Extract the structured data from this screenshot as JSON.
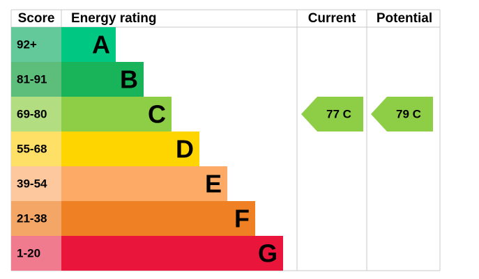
{
  "header": {
    "score": "Score",
    "rating": "Energy rating",
    "current": "Current",
    "potential": "Potential"
  },
  "bands": [
    {
      "score": "92+",
      "letter": "A",
      "color": "#00c781",
      "score_color": "#63c99b"
    },
    {
      "score": "81-91",
      "letter": "B",
      "color": "#19b459",
      "score_color": "#5dbe7c"
    },
    {
      "score": "69-80",
      "letter": "C",
      "color": "#8dce46",
      "score_color": "#b2dd80"
    },
    {
      "score": "55-68",
      "letter": "D",
      "color": "#ffd500",
      "score_color": "#ffe066"
    },
    {
      "score": "39-54",
      "letter": "E",
      "color": "#fcaa65",
      "score_color": "#fdc89d"
    },
    {
      "score": "21-38",
      "letter": "F",
      "color": "#ef8023",
      "score_color": "#f3a666"
    },
    {
      "score": "1-20",
      "letter": "G",
      "color": "#e9153b",
      "score_color": "#f07a8e"
    }
  ],
  "current": {
    "label": "77 C",
    "color": "#8dce46"
  },
  "potential": {
    "label": "79 C",
    "color": "#8dce46"
  }
}
